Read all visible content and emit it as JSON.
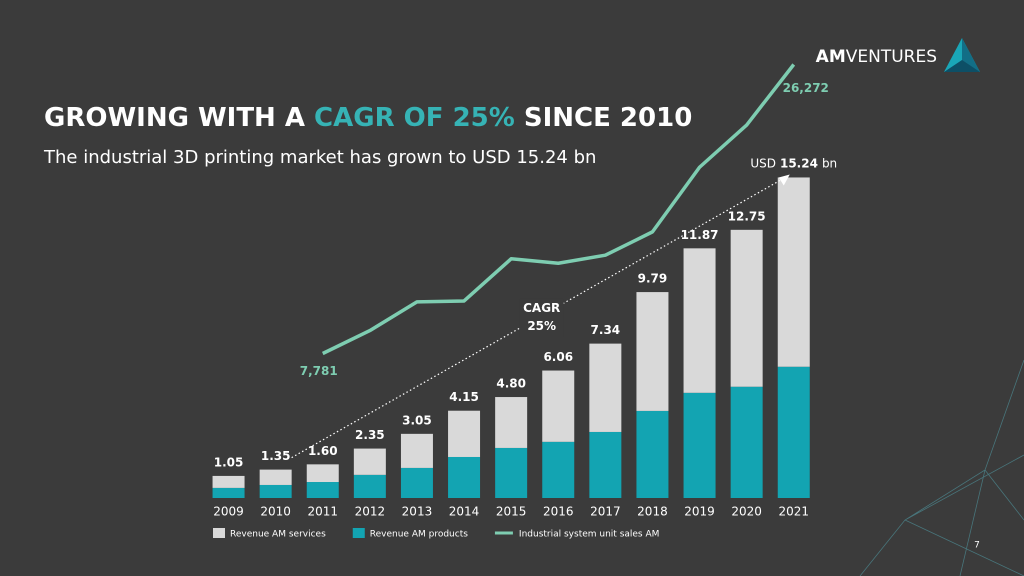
{
  "slide": {
    "title_parts": [
      "GROWING WITH A ",
      "CAGR OF 25%",
      " SINCE 2010"
    ],
    "subtitle": "The industrial 3D printing market has grown to USD 15.24 bn",
    "logo_bold": "AM",
    "logo_regular": "VENTURES",
    "page_number": "7"
  },
  "chart_data": {
    "type": "bar",
    "stacked": true,
    "categories": [
      "2009",
      "2010",
      "2011",
      "2012",
      "2013",
      "2014",
      "2015",
      "2016",
      "2017",
      "2018",
      "2019",
      "2020",
      "2021"
    ],
    "series": [
      {
        "name": "Revenue AM services",
        "color": "#d9d9d9",
        "values": [
          0.57,
          0.73,
          0.84,
          1.25,
          1.62,
          2.2,
          2.42,
          3.39,
          4.2,
          5.65,
          6.87,
          7.46,
          9.0
        ]
      },
      {
        "name": "Revenue AM products",
        "color": "#13a4b2",
        "values": [
          0.48,
          0.62,
          0.76,
          1.1,
          1.43,
          1.95,
          2.38,
          2.67,
          3.14,
          4.14,
          5.0,
          5.29,
          6.24
        ]
      },
      {
        "name": "Industrial system unit sales AM",
        "type": "line",
        "axis": "y2",
        "color": "#7ecdb1",
        "values": [
          null,
          null,
          7781,
          9246,
          11084,
          11141,
          13840,
          13553,
          14070,
          15563,
          19698,
          22398,
          26272
        ],
        "value_labels": [
          null,
          null,
          "7,781",
          null,
          null,
          null,
          null,
          null,
          null,
          null,
          null,
          null,
          "26,272"
        ]
      }
    ],
    "totals": [
      "1.05",
      "1.35",
      "1.60",
      "2.35",
      "3.05",
      "4.15",
      "4.80",
      "6.06",
      "7.34",
      "9.79",
      "11.87",
      "12.75",
      "15.24"
    ],
    "annotations": {
      "cagr_label": "CAGR",
      "cagr_value": "25%",
      "total_prefix": "USD",
      "total_value": "15.24",
      "total_unit": "bn"
    },
    "ylim": [
      0,
      21.3
    ],
    "y2lim": [
      -1465,
      27200
    ],
    "legend": "bottom"
  }
}
